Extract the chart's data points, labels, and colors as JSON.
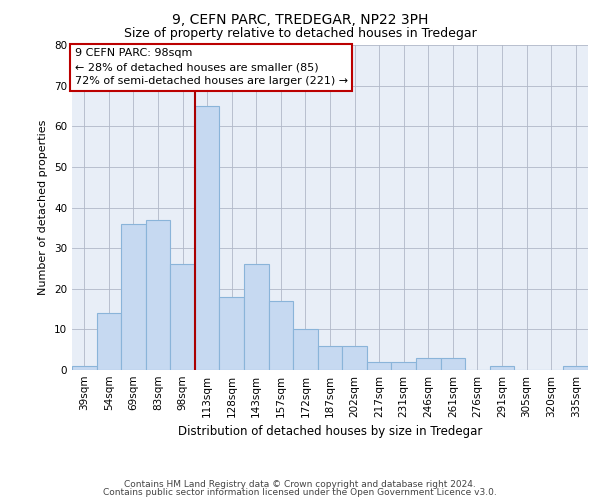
{
  "title1": "9, CEFN PARC, TREDEGAR, NP22 3PH",
  "title2": "Size of property relative to detached houses in Tredegar",
  "xlabel": "Distribution of detached houses by size in Tredegar",
  "ylabel": "Number of detached properties",
  "categories": [
    "39sqm",
    "54sqm",
    "69sqm",
    "83sqm",
    "98sqm",
    "113sqm",
    "128sqm",
    "143sqm",
    "157sqm",
    "172sqm",
    "187sqm",
    "202sqm",
    "217sqm",
    "231sqm",
    "246sqm",
    "261sqm",
    "276sqm",
    "291sqm",
    "305sqm",
    "320sqm",
    "335sqm"
  ],
  "values": [
    1,
    14,
    36,
    37,
    26,
    65,
    18,
    26,
    17,
    10,
    6,
    6,
    2,
    2,
    3,
    3,
    0,
    1,
    0,
    0,
    1
  ],
  "bar_color": "#c6d9f1",
  "bar_edge_color": "#8ab4d9",
  "vline_color": "#aa0000",
  "vline_x_index": 4,
  "ylim": [
    0,
    80
  ],
  "yticks": [
    0,
    10,
    20,
    30,
    40,
    50,
    60,
    70,
    80
  ],
  "annotation_text_line1": "9 CEFN PARC: 98sqm",
  "annotation_text_line2": "← 28% of detached houses are smaller (85)",
  "annotation_text_line3": "72% of semi-detached houses are larger (221) →",
  "annotation_box_color": "#ffffff",
  "annotation_box_edge": "#bb0000",
  "footnote1": "Contains HM Land Registry data © Crown copyright and database right 2024.",
  "footnote2": "Contains public sector information licensed under the Open Government Licence v3.0.",
  "title1_fontsize": 10,
  "title2_fontsize": 9,
  "xlabel_fontsize": 8.5,
  "ylabel_fontsize": 8,
  "tick_fontsize": 7.5,
  "annotation_fontsize": 8,
  "footnote_fontsize": 6.5,
  "bg_color": "#e8eef7"
}
